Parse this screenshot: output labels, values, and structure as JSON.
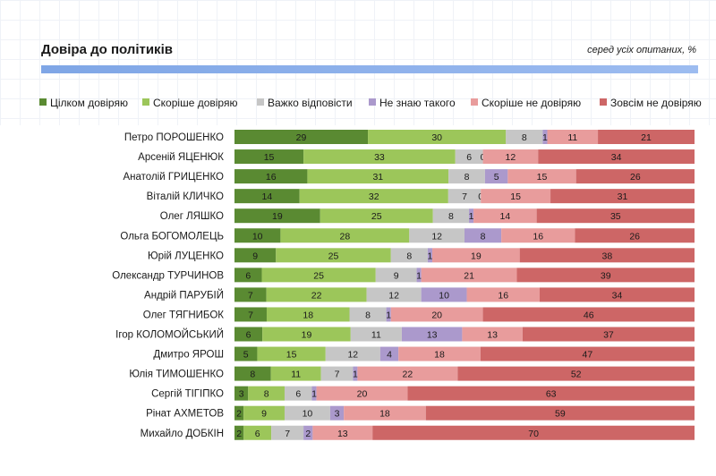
{
  "title": "Довіра до політиків",
  "subtitle": "серед усіх опитаних, %",
  "chart_data": {
    "type": "bar",
    "orientation": "horizontal",
    "stacked": true,
    "xlim": [
      0,
      100
    ],
    "legend_position": "top",
    "categories": [
      "Петро ПОРОШЕНКО",
      "Арсеній ЯЦЕНЮК",
      "Анатолій ГРИЦЕНКО",
      "Віталій КЛИЧКО",
      "Олег ЛЯШКО",
      "Ольга БОГОМОЛЕЦЬ",
      "Юрій ЛУЦЕНКО",
      "Олександр ТУРЧИНОВ",
      "Андрій ПАРУБІЙ",
      "Олег ТЯГНИБОК",
      "Ігор КОЛОМОЙСЬКИЙ",
      "Дмитро ЯРОШ",
      "Юлія ТИМОШЕНКО",
      "Сергій ТІГІПКО",
      "Рінат АХМЕТОВ",
      "Михайло ДОБКІН"
    ],
    "series": [
      {
        "name": "Цілком довіряю",
        "color": "#5a8a32",
        "values": [
          29,
          15,
          16,
          14,
          19,
          10,
          9,
          6,
          7,
          7,
          6,
          5,
          8,
          3,
          2,
          2
        ]
      },
      {
        "name": "Скоріше довіряю",
        "color": "#9cc65a",
        "values": [
          30,
          33,
          31,
          32,
          25,
          28,
          25,
          25,
          22,
          18,
          19,
          15,
          11,
          8,
          9,
          6
        ]
      },
      {
        "name": "Важко відповісти",
        "color": "#c6c6c6",
        "values": [
          8,
          6,
          8,
          7,
          8,
          12,
          8,
          9,
          12,
          8,
          11,
          12,
          7,
          6,
          10,
          7
        ]
      },
      {
        "name": "Не знаю такого",
        "color": "#ab99cc",
        "values": [
          1,
          0,
          5,
          0,
          1,
          8,
          1,
          1,
          10,
          1,
          13,
          4,
          1,
          1,
          3,
          2
        ]
      },
      {
        "name": "Скоріше не довіряю",
        "color": "#e89c9c",
        "values": [
          11,
          12,
          15,
          15,
          14,
          16,
          19,
          21,
          16,
          20,
          13,
          18,
          22,
          20,
          18,
          13
        ]
      },
      {
        "name": "Зовсім не довіряю",
        "color": "#cd6666",
        "values": [
          21,
          34,
          26,
          31,
          35,
          26,
          38,
          39,
          34,
          46,
          37,
          47,
          52,
          63,
          59,
          70
        ]
      }
    ]
  }
}
